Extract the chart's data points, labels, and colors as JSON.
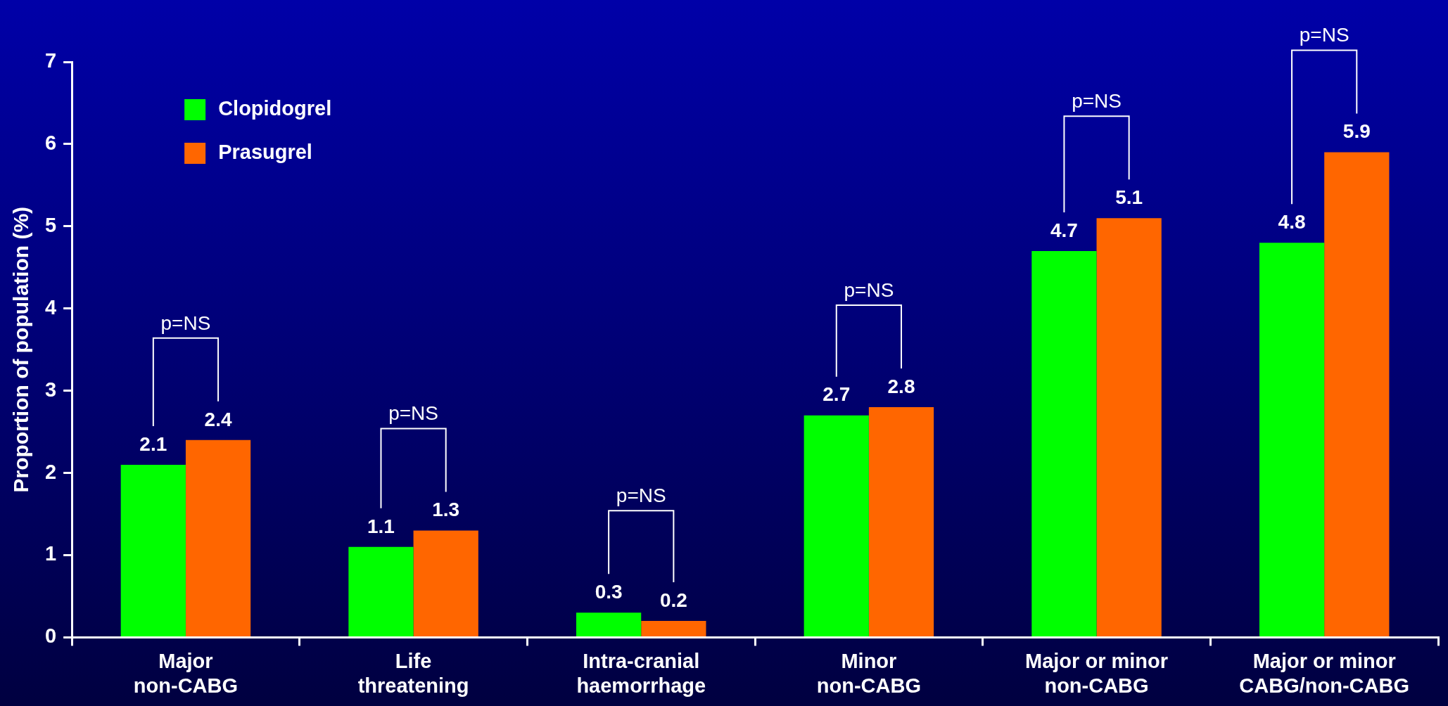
{
  "chart_data": {
    "type": "bar",
    "ylabel": "Proportion of population (%)",
    "categories": [
      "Major\nnon-CABG",
      "Life\nthreatening",
      "Intra-cranial\nhaemorrhage",
      "Minor\nnon-CABG",
      "Major or minor\nnon-CABG",
      "Major or minor\nCABG/non-CABG"
    ],
    "series": [
      {
        "name": "Clopidogrel",
        "color": "#00ff00",
        "values": [
          2.1,
          1.1,
          0.3,
          2.7,
          4.7,
          4.8
        ]
      },
      {
        "name": "Prasugrel",
        "color": "#ff6600",
        "values": [
          2.4,
          1.3,
          0.2,
          2.8,
          5.1,
          5.9
        ]
      }
    ],
    "ylim": [
      0,
      7
    ],
    "yticks": [
      0,
      1,
      2,
      3,
      4,
      5,
      6,
      7
    ],
    "grid": false,
    "legend": "top left",
    "data_labels": true,
    "annotations": [
      "p=NS",
      "p=NS",
      "p=NS",
      "p=NS",
      "p=NS",
      "p=NS"
    ]
  }
}
